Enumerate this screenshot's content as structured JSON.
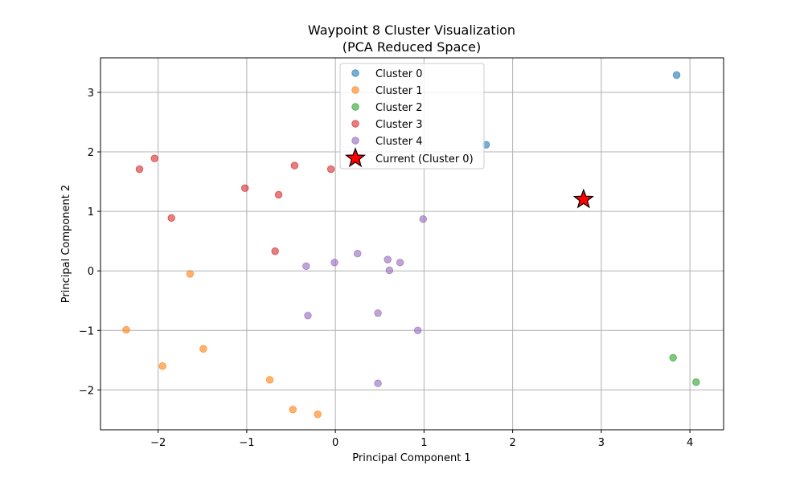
{
  "chart_data": {
    "type": "scatter",
    "title_line1": "Waypoint 8 Cluster Visualization",
    "title_line2": "(PCA Reduced Space)",
    "xlabel": "Principal Component 1",
    "ylabel": "Principal Component 2",
    "xlim": [
      -2.65,
      4.38
    ],
    "ylim": [
      -2.67,
      3.58
    ],
    "xticks": [
      -2,
      -1,
      0,
      1,
      2,
      3,
      4
    ],
    "yticks": [
      -2,
      -1,
      0,
      1,
      2,
      3
    ],
    "xtick_labels": [
      "−2",
      "−1",
      "0",
      "1",
      "2",
      "3",
      "4"
    ],
    "ytick_labels": [
      "−2",
      "−1",
      "0",
      "1",
      "2",
      "3"
    ],
    "grid": true,
    "legend_position": "upper-center",
    "series": [
      {
        "name": "Cluster 0",
        "color": "#1f77b4",
        "points": [
          [
            3.85,
            3.29
          ],
          [
            1.7,
            2.12
          ]
        ]
      },
      {
        "name": "Cluster 1",
        "color": "#ff7f0e",
        "points": [
          [
            -1.64,
            -0.05
          ],
          [
            -2.36,
            -0.99
          ],
          [
            -1.49,
            -1.31
          ],
          [
            -1.95,
            -1.6
          ],
          [
            -0.74,
            -1.83
          ],
          [
            -0.48,
            -2.33
          ],
          [
            -0.2,
            -2.41
          ]
        ]
      },
      {
        "name": "Cluster 2",
        "color": "#2ca02c",
        "points": [
          [
            3.81,
            -1.46
          ],
          [
            4.07,
            -1.87
          ]
        ]
      },
      {
        "name": "Cluster 3",
        "color": "#d62728",
        "points": [
          [
            -2.04,
            1.89
          ],
          [
            -2.21,
            1.71
          ],
          [
            -0.46,
            1.77
          ],
          [
            -0.05,
            1.71
          ],
          [
            -1.02,
            1.39
          ],
          [
            -0.64,
            1.28
          ],
          [
            -1.85,
            0.89
          ],
          [
            -0.68,
            0.33
          ]
        ]
      },
      {
        "name": "Cluster 4",
        "color": "#9467bd",
        "points": [
          [
            0.99,
            0.87
          ],
          [
            0.25,
            0.29
          ],
          [
            0.59,
            0.19
          ],
          [
            0.73,
            0.14
          ],
          [
            -0.01,
            0.14
          ],
          [
            -0.33,
            0.08
          ],
          [
            0.61,
            0.01
          ],
          [
            0.48,
            -0.71
          ],
          [
            -0.31,
            -0.75
          ],
          [
            0.93,
            -1.0
          ],
          [
            0.48,
            -1.89
          ]
        ]
      }
    ],
    "current": {
      "name": "Current (Cluster 0)",
      "color": "#ff0000",
      "point": [
        2.8,
        1.2
      ]
    }
  }
}
